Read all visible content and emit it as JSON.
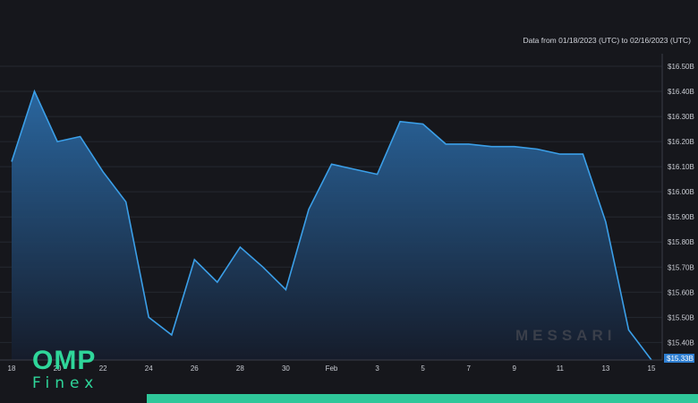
{
  "header": {
    "range_text": "Data from 01/18/2023 (UTC) to 02/16/2023 (UTC)"
  },
  "watermark": "MESSARI",
  "brand": {
    "line1": "OMP",
    "line2": "Finex",
    "color": "#2fd69a"
  },
  "colors": {
    "line": "#3b9fe8",
    "fill_top": "#2b6aa5",
    "fill_bottom": "#151c2b",
    "grid": "#262932",
    "accent_bar": "#2fc79a"
  },
  "chart_data": {
    "type": "area",
    "xlabel": "",
    "ylabel": "",
    "title": "",
    "x_ticks": [
      "18",
      "20",
      "22",
      "24",
      "26",
      "28",
      "30",
      "Feb",
      "3",
      "5",
      "7",
      "9",
      "11",
      "13",
      "15"
    ],
    "x_tick_days": [
      0,
      2,
      4,
      6,
      8,
      10,
      12,
      14,
      16,
      18,
      20,
      22,
      24,
      26,
      28
    ],
    "y_ticks": [
      "$15.40B",
      "$15.50B",
      "$15.60B",
      "$15.70B",
      "$15.80B",
      "$15.90B",
      "$16.00B",
      "$16.10B",
      "$16.20B",
      "$16.30B",
      "$16.40B",
      "$16.50B"
    ],
    "y_tick_values": [
      15.4,
      15.5,
      15.6,
      15.7,
      15.8,
      15.9,
      16.0,
      16.1,
      16.2,
      16.3,
      16.4,
      16.5
    ],
    "current_label": "$15.33B",
    "ylim": [
      15.33,
      16.55
    ],
    "series": [
      {
        "dates": [
          "2023-01-18",
          "2023-01-19",
          "2023-01-20",
          "2023-01-21",
          "2023-01-22",
          "2023-01-23",
          "2023-01-24",
          "2023-01-25",
          "2023-01-26",
          "2023-01-27",
          "2023-01-28",
          "2023-01-29",
          "2023-01-30",
          "2023-01-31",
          "2023-02-01",
          "2023-02-02",
          "2023-02-03",
          "2023-02-04",
          "2023-02-05",
          "2023-02-06",
          "2023-02-07",
          "2023-02-08",
          "2023-02-09",
          "2023-02-10",
          "2023-02-11",
          "2023-02-12",
          "2023-02-13",
          "2023-02-14",
          "2023-02-15"
        ],
        "values": [
          16.12,
          16.4,
          16.2,
          16.22,
          16.08,
          15.96,
          15.5,
          15.43,
          15.73,
          15.64,
          15.78,
          15.7,
          15.61,
          15.93,
          16.11,
          16.09,
          16.07,
          16.28,
          16.27,
          16.19,
          16.19,
          16.18,
          16.18,
          16.17,
          16.15,
          16.15,
          15.88,
          15.45,
          15.33
        ]
      }
    ]
  }
}
